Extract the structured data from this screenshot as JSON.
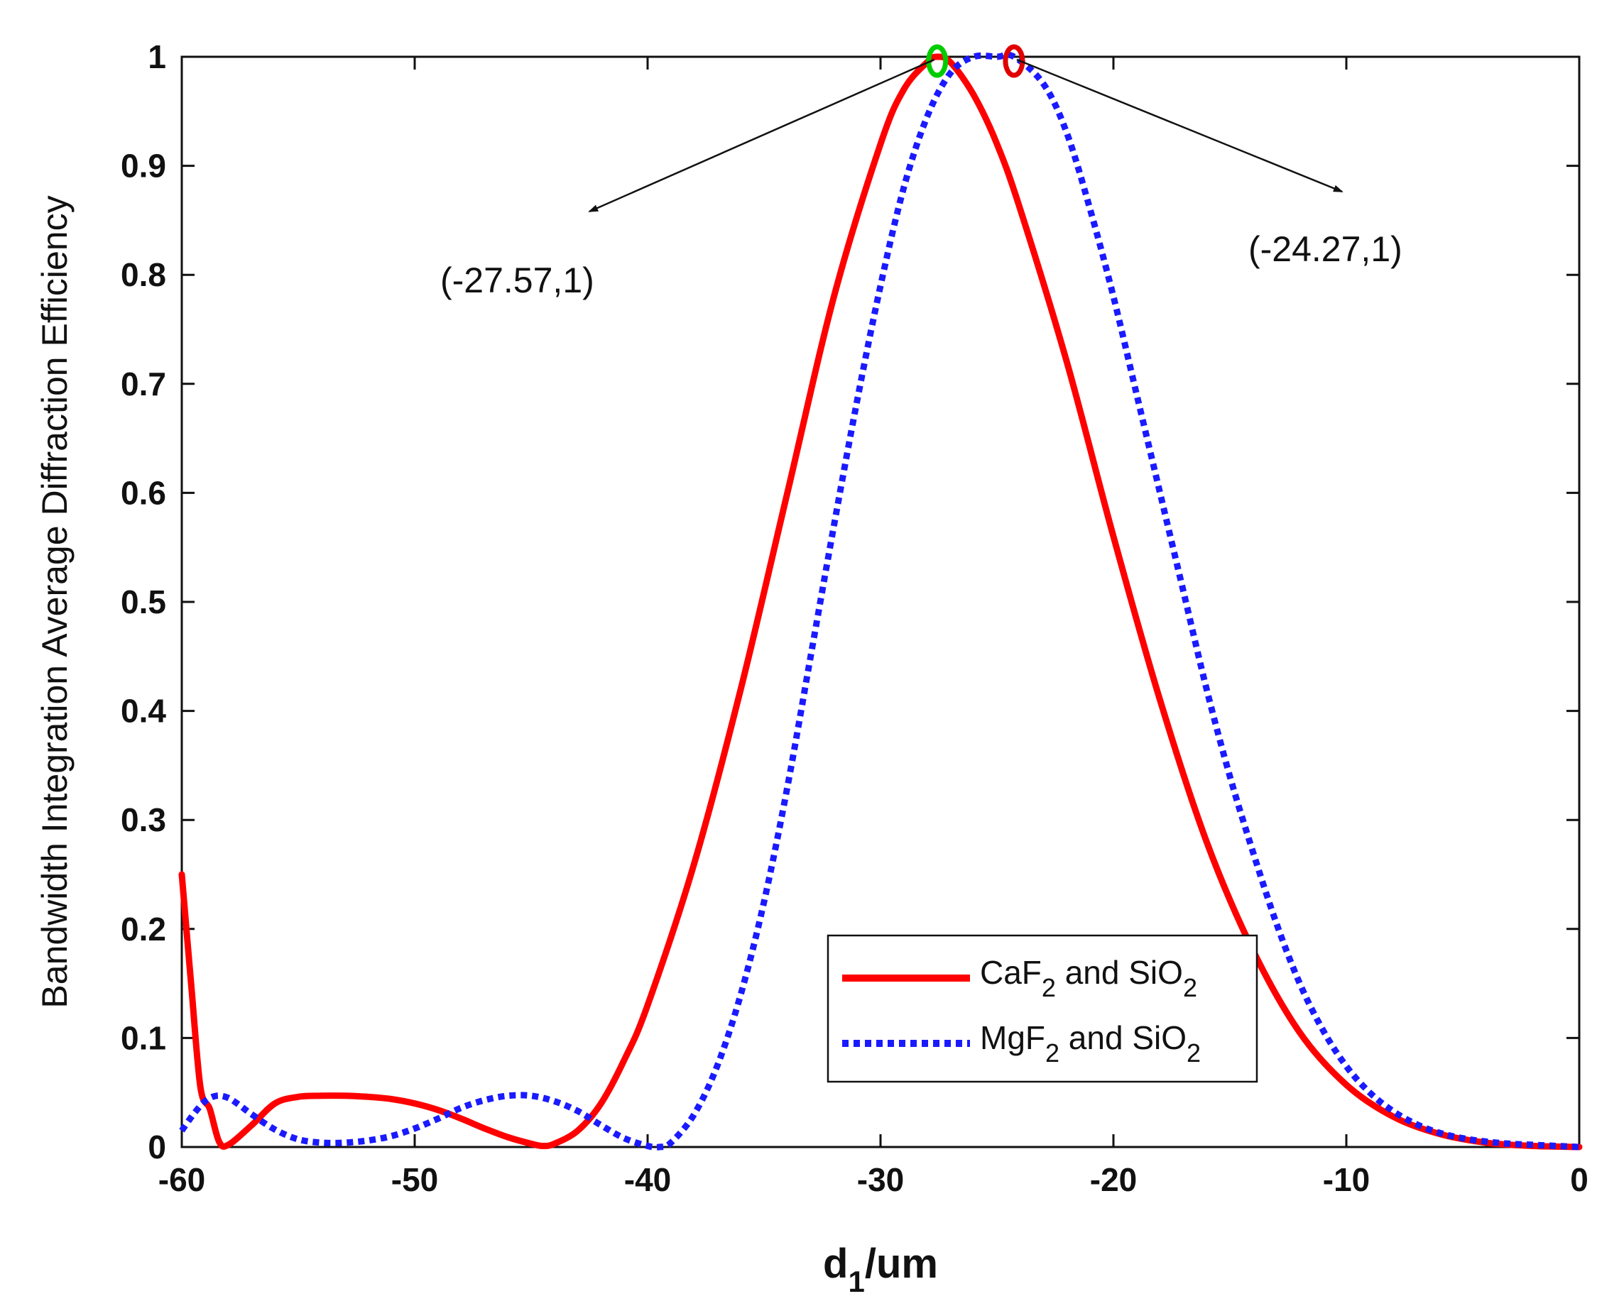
{
  "chart_data": {
    "type": "line",
    "title": "",
    "xlabel": "d1/um",
    "xlabel_parts": {
      "main": "d",
      "sub": "1",
      "rest": "/um"
    },
    "ylabel": "Bandwidth Integration Average Diffraction Efficiency",
    "xlim": [
      -60,
      0
    ],
    "ylim": [
      0,
      1
    ],
    "xticks": [
      -60,
      -50,
      -40,
      -30,
      -20,
      -10,
      0
    ],
    "xtick_labels": [
      "-60",
      "-50",
      "-40",
      "-30",
      "-20",
      "-10",
      "0"
    ],
    "yticks": [
      0,
      0.1,
      0.2,
      0.3,
      0.4,
      0.5,
      0.6,
      0.7,
      0.8,
      0.9,
      1
    ],
    "ytick_labels": [
      "0",
      "0.1",
      "0.2",
      "0.3",
      "0.4",
      "0.5",
      "0.6",
      "0.7",
      "0.8",
      "0.9",
      "1"
    ],
    "grid": false,
    "legend_position": "bottom-right",
    "series": [
      {
        "name": "CaF2 and SiO2",
        "label_parts": {
          "a": "CaF",
          "a_sub": "2",
          "b": " and SiO",
          "b_sub": "2"
        },
        "color": "#ff0000",
        "style": "solid",
        "x": [
          -60,
          -59.6,
          -59.2,
          -58.8,
          -58.4,
          -58,
          -57,
          -56,
          -55,
          -54,
          -53,
          -52,
          -51,
          -50,
          -49,
          -48,
          -47,
          -46,
          -45,
          -44.5,
          -44,
          -43,
          -42,
          -41,
          -40,
          -38,
          -36,
          -34,
          -32,
          -30,
          -29,
          -28,
          -27.57,
          -27,
          -26,
          -25,
          -24,
          -22,
          -20,
          -18,
          -16,
          -14,
          -12,
          -10,
          -8,
          -6,
          -4,
          -2,
          0
        ],
        "y": [
          0.25,
          0.15,
          0.055,
          0.035,
          0.005,
          0.002,
          0.02,
          0.04,
          0.046,
          0.047,
          0.047,
          0.046,
          0.044,
          0.04,
          0.034,
          0.026,
          0.017,
          0.009,
          0.003,
          0.001,
          0.003,
          0.015,
          0.04,
          0.08,
          0.13,
          0.26,
          0.42,
          0.6,
          0.78,
          0.92,
          0.97,
          0.995,
          1.0,
          0.995,
          0.965,
          0.92,
          0.86,
          0.72,
          0.56,
          0.41,
          0.28,
          0.18,
          0.105,
          0.057,
          0.028,
          0.012,
          0.004,
          0.001,
          0.0
        ]
      },
      {
        "name": "MgF2 and SiO2",
        "label_parts": {
          "a": "MgF",
          "a_sub": "2",
          "b": " and SiO",
          "b_sub": "2"
        },
        "color": "#1a1aff",
        "style": "dotted",
        "x": [
          -60,
          -59.5,
          -59,
          -58.5,
          -58,
          -57.5,
          -57,
          -56,
          -55,
          -54,
          -53,
          -52,
          -51,
          -50,
          -49,
          -48,
          -47,
          -46,
          -45,
          -44,
          -43,
          -42,
          -41,
          -40,
          -39.5,
          -39,
          -38,
          -37,
          -36,
          -35,
          -34,
          -33,
          -32,
          -31,
          -30,
          -29,
          -28,
          -27,
          -26,
          -25,
          -24.27,
          -23,
          -22,
          -21,
          -20,
          -19,
          -18,
          -17,
          -16,
          -15,
          -14,
          -13,
          -12,
          -11,
          -10,
          -9,
          -8,
          -7,
          -6,
          -5,
          -4,
          -3,
          -2,
          -1,
          0
        ],
        "y": [
          0.015,
          0.03,
          0.042,
          0.047,
          0.045,
          0.038,
          0.03,
          0.016,
          0.007,
          0.004,
          0.004,
          0.006,
          0.01,
          0.017,
          0.026,
          0.036,
          0.043,
          0.047,
          0.047,
          0.042,
          0.033,
          0.02,
          0.008,
          0.001,
          0.0,
          0.004,
          0.03,
          0.075,
          0.14,
          0.225,
          0.33,
          0.45,
          0.57,
          0.685,
          0.79,
          0.88,
          0.945,
          0.985,
          1.0,
          1.0,
          1.0,
          0.975,
          0.93,
          0.86,
          0.78,
          0.69,
          0.6,
          0.51,
          0.42,
          0.34,
          0.27,
          0.205,
          0.15,
          0.107,
          0.074,
          0.05,
          0.033,
          0.021,
          0.013,
          0.008,
          0.005,
          0.003,
          0.002,
          0.001,
          0.0
        ]
      }
    ],
    "markers": [
      {
        "name": "peak-marker-green",
        "x": -27.57,
        "y": 1,
        "color": "#00cc00"
      },
      {
        "name": "peak-marker-red",
        "x": -24.27,
        "y": 1,
        "color": "#e00000"
      }
    ],
    "annotations": [
      {
        "text": "(-27.57,1)",
        "point": [
          -27.57,
          1
        ]
      },
      {
        "text": "(-24.27,1)",
        "point": [
          -24.27,
          1
        ]
      }
    ]
  }
}
